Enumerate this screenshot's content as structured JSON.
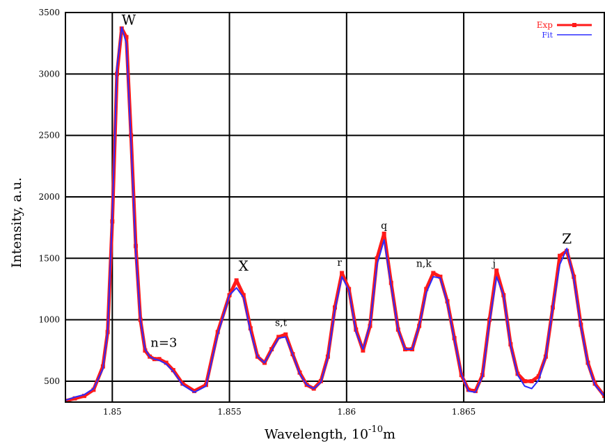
{
  "chart_data": {
    "type": "line",
    "xlabel_text": "Wavelength, 10",
    "xlabel_exp": "-10",
    "xlabel_unit": "m",
    "ylabel": "Intensity, a.u.",
    "xlim": [
      1.848,
      1.871
    ],
    "ylim": [
      330,
      3500
    ],
    "grid": true,
    "legend_position": "top-right",
    "x_ticks": [
      {
        "value": 1.85,
        "label": "1.85"
      },
      {
        "value": 1.855,
        "label": "1.855"
      },
      {
        "value": 1.86,
        "label": "1.86"
      },
      {
        "value": 1.865,
        "label": "1.865"
      }
    ],
    "y_ticks": [
      {
        "value": 500,
        "label": "500"
      },
      {
        "value": 1000,
        "label": "1000"
      },
      {
        "value": 1500,
        "label": "1500"
      },
      {
        "value": 2000,
        "label": "2000"
      },
      {
        "value": 2500,
        "label": "2500"
      },
      {
        "value": 3000,
        "label": "3000"
      },
      {
        "value": 3500,
        "label": "3500"
      }
    ],
    "series": [
      {
        "name": "Exp",
        "color": "#ff1a1a",
        "x": [
          1.848,
          1.8484,
          1.8488,
          1.8492,
          1.8496,
          1.8498,
          1.85,
          1.8502,
          1.8504,
          1.8506,
          1.8508,
          1.851,
          1.8512,
          1.8514,
          1.8516,
          1.8518,
          1.852,
          1.8523,
          1.8526,
          1.853,
          1.8535,
          1.854,
          1.8545,
          1.855,
          1.8553,
          1.8556,
          1.8559,
          1.8562,
          1.8565,
          1.8568,
          1.8571,
          1.8574,
          1.8577,
          1.858,
          1.8583,
          1.8586,
          1.8589,
          1.8592,
          1.8595,
          1.8598,
          1.8601,
          1.8604,
          1.8607,
          1.861,
          1.8613,
          1.8616,
          1.8619,
          1.8622,
          1.8625,
          1.8628,
          1.8631,
          1.8634,
          1.8637,
          1.864,
          1.8643,
          1.8646,
          1.8649,
          1.8652,
          1.8655,
          1.8658,
          1.8661,
          1.8664,
          1.8667,
          1.867,
          1.8673,
          1.8676,
          1.8679,
          1.8682,
          1.8685,
          1.8688,
          1.8691,
          1.8694,
          1.8697,
          1.87,
          1.8703,
          1.8706,
          1.871
        ],
        "y": [
          340,
          360,
          380,
          430,
          620,
          900,
          1800,
          3000,
          3370,
          3300,
          2500,
          1600,
          1000,
          750,
          700,
          680,
          680,
          650,
          590,
          480,
          420,
          470,
          900,
          1200,
          1320,
          1200,
          930,
          700,
          650,
          760,
          860,
          880,
          720,
          570,
          470,
          440,
          500,
          700,
          1100,
          1380,
          1250,
          920,
          750,
          950,
          1500,
          1700,
          1300,
          920,
          760,
          760,
          950,
          1250,
          1380,
          1350,
          1150,
          850,
          550,
          430,
          420,
          550,
          1000,
          1400,
          1200,
          800,
          560,
          500,
          500,
          540,
          700,
          1100,
          1520,
          1560,
          1350,
          960,
          650,
          480,
          380
        ]
      },
      {
        "name": "Fit",
        "color": "#2b2bff",
        "x": [
          1.848,
          1.8484,
          1.8488,
          1.8492,
          1.8496,
          1.8498,
          1.85,
          1.8502,
          1.8504,
          1.8506,
          1.8508,
          1.851,
          1.8512,
          1.8514,
          1.8516,
          1.8518,
          1.852,
          1.8523,
          1.8526,
          1.853,
          1.8535,
          1.854,
          1.8545,
          1.855,
          1.8553,
          1.8556,
          1.8559,
          1.8562,
          1.8565,
          1.8568,
          1.8571,
          1.8574,
          1.8577,
          1.858,
          1.8583,
          1.8586,
          1.8589,
          1.8592,
          1.8595,
          1.8598,
          1.8601,
          1.8604,
          1.8607,
          1.861,
          1.8613,
          1.8616,
          1.8619,
          1.8622,
          1.8625,
          1.8628,
          1.8631,
          1.8634,
          1.8637,
          1.864,
          1.8643,
          1.8646,
          1.8649,
          1.8652,
          1.8655,
          1.8658,
          1.8661,
          1.8664,
          1.8667,
          1.867,
          1.8673,
          1.8676,
          1.8679,
          1.8682,
          1.8685,
          1.8688,
          1.8691,
          1.8694,
          1.8697,
          1.87,
          1.8703,
          1.8706,
          1.871
        ],
        "y": [
          345,
          370,
          390,
          440,
          600,
          900,
          1850,
          3050,
          3380,
          3250,
          2450,
          1550,
          1000,
          760,
          700,
          680,
          670,
          640,
          580,
          470,
          410,
          460,
          880,
          1200,
          1260,
          1180,
          900,
          700,
          650,
          750,
          850,
          860,
          720,
          560,
          470,
          440,
          490,
          690,
          1080,
          1350,
          1240,
          900,
          760,
          960,
          1450,
          1650,
          1280,
          920,
          760,
          760,
          950,
          1220,
          1350,
          1340,
          1140,
          840,
          560,
          420,
          410,
          540,
          980,
          1350,
          1200,
          790,
          550,
          460,
          440,
          510,
          700,
          1100,
          1450,
          1580,
          1330,
          950,
          640,
          470,
          380
        ]
      }
    ],
    "annotations": [
      {
        "text": "W",
        "x": 1.8507,
        "y": 3400
      },
      {
        "text": "n=3",
        "x": 1.8522,
        "y": 780
      },
      {
        "text": "X",
        "x": 1.8556,
        "y": 1400
      },
      {
        "text": "s,t",
        "x": 1.8572,
        "y": 950
      },
      {
        "text": "r",
        "x": 1.8597,
        "y": 1440
      },
      {
        "text": "q",
        "x": 1.8616,
        "y": 1740
      },
      {
        "text": "n,k",
        "x": 1.8633,
        "y": 1430
      },
      {
        "text": "j",
        "x": 1.8663,
        "y": 1430
      },
      {
        "text": "Z",
        "x": 1.8694,
        "y": 1620
      }
    ]
  }
}
